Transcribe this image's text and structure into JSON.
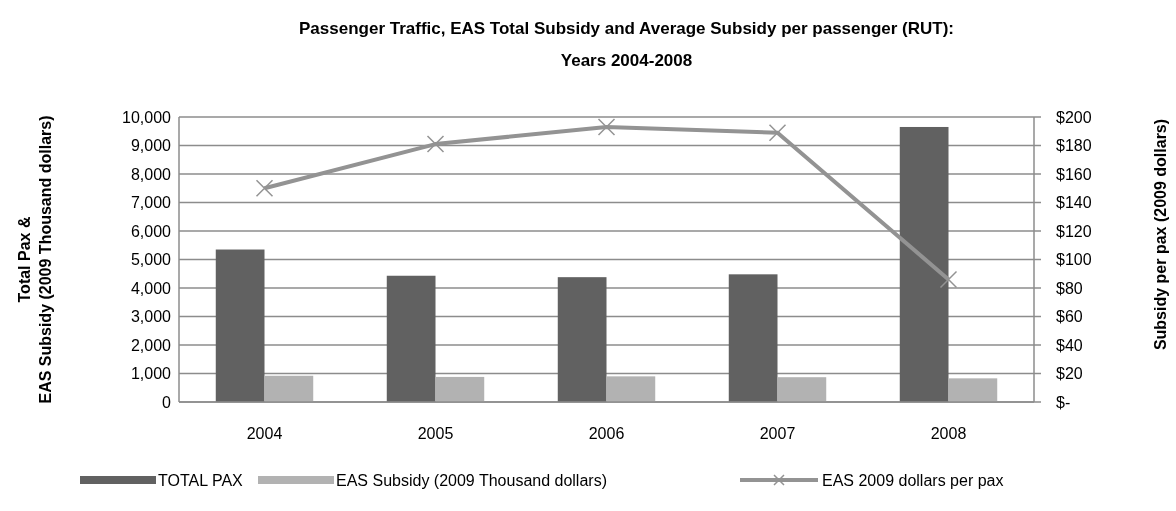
{
  "chart_data": {
    "type": "bar",
    "title": "Passenger Traffic, EAS Total Subsidy and Average Subsidy per passenger (RUT):\nYears 2004-2008",
    "ylabel": "Total Pax &\nEAS Subsidy (2009 Thousand dollars)",
    "y2label": "Subsidy per pax (2009 dollars)",
    "categories": [
      "2004",
      "2005",
      "2006",
      "2007",
      "2008"
    ],
    "series": [
      {
        "name": "TOTAL PAX",
        "color": "#616161",
        "values": [
          5350,
          4430,
          4380,
          4480,
          9650
        ]
      },
      {
        "name": "EAS Subsidy (2009 Thousand dollars)",
        "color": "#b2b2b2",
        "values": [
          920,
          880,
          900,
          870,
          830
        ]
      },
      {
        "name": "EAS 2009 dollars per pax",
        "type": "line",
        "axis": "y2",
        "color": "#939393",
        "marker": "cross",
        "values": [
          150,
          181,
          193,
          189,
          86
        ]
      }
    ],
    "ylim": [
      0,
      10000
    ],
    "yticks": [
      {
        "value": 0,
        "label": "0"
      },
      {
        "value": 1000,
        "label": "1,000"
      },
      {
        "value": 2000,
        "label": "2,000"
      },
      {
        "value": 3000,
        "label": "3,000"
      },
      {
        "value": 4000,
        "label": "4,000"
      },
      {
        "value": 5000,
        "label": "5,000"
      },
      {
        "value": 6000,
        "label": "6,000"
      },
      {
        "value": 7000,
        "label": "7,000"
      },
      {
        "value": 8000,
        "label": "8,000"
      },
      {
        "value": 9000,
        "label": "9,000"
      },
      {
        "value": 10000,
        "label": "10,000"
      }
    ],
    "y2lim": [
      0,
      200
    ],
    "y2ticks": [
      {
        "value": 0,
        "label": "$-"
      },
      {
        "value": 20,
        "label": "$20"
      },
      {
        "value": 40,
        "label": "$40"
      },
      {
        "value": 60,
        "label": "$60"
      },
      {
        "value": 80,
        "label": "$80"
      },
      {
        "value": 100,
        "label": "$100"
      },
      {
        "value": 120,
        "label": "$120"
      },
      {
        "value": 140,
        "label": "$140"
      },
      {
        "value": 160,
        "label": "$160"
      },
      {
        "value": 180,
        "label": "$180"
      },
      {
        "value": 200,
        "label": "$200"
      }
    ],
    "grid": "y",
    "legend": "bottom"
  }
}
